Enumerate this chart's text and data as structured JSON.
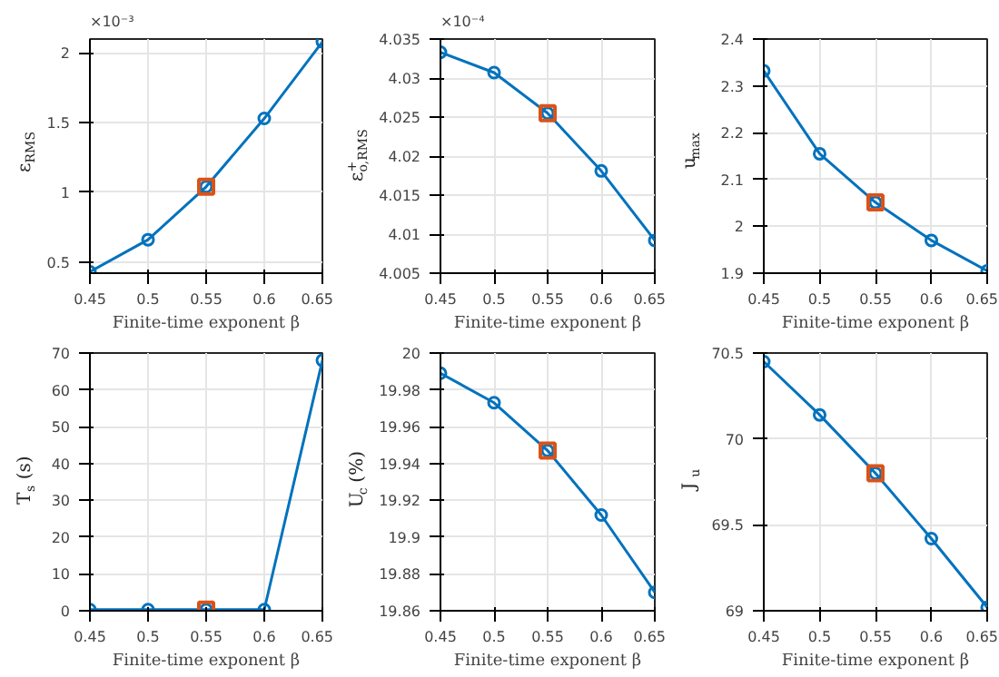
{
  "chart_data": [
    {
      "type": "line",
      "xlabel": "Finite-time exponent β",
      "ylabel": "ε$_{RMS}$",
      "annotations": [
        "×10⁻³"
      ],
      "x": [
        0.45,
        0.5,
        0.55,
        0.6,
        0.65
      ],
      "xlim": [
        0.45,
        0.65
      ],
      "xticks": [
        0.45,
        0.5,
        0.55,
        0.6,
        0.65
      ],
      "ylim": [
        0.42,
        2.1
      ],
      "yticks": [
        0.5,
        1,
        1.5,
        2
      ],
      "grid": true,
      "marker": "circle",
      "series": [
        {
          "color": "#0072bd",
          "values": [
            0.43,
            0.66,
            1.04,
            1.53,
            2.08
          ]
        },
        {
          "type": "scatter",
          "marker": "square",
          "color": "#d95319",
          "values": [
            null,
            null,
            1.04,
            null,
            null
          ]
        }
      ]
    },
    {
      "type": "line",
      "xlabel": "Finite-time exponent β",
      "ylabel": "ε$^{+}$$_{o,RMS}$",
      "annotations": [
        "×10⁻⁴"
      ],
      "x": [
        0.45,
        0.5,
        0.55,
        0.6,
        0.65
      ],
      "xlim": [
        0.45,
        0.65
      ],
      "xticks": [
        0.45,
        0.5,
        0.55,
        0.6,
        0.65
      ],
      "ylim": [
        4.005,
        4.035
      ],
      "yticks": [
        4.005,
        4.01,
        4.015,
        4.02,
        4.025,
        4.03,
        4.035
      ],
      "grid": true,
      "marker": "circle",
      "series": [
        {
          "color": "#0072bd",
          "values": [
            4.0333,
            4.0307,
            4.0255,
            4.0181,
            4.0092
          ]
        },
        {
          "type": "scatter",
          "marker": "square",
          "color": "#d95319",
          "values": [
            null,
            null,
            4.0255,
            null,
            null
          ]
        }
      ]
    },
    {
      "type": "line",
      "xlabel": "Finite-time exponent β",
      "ylabel": "u$_{max}$",
      "x": [
        0.45,
        0.5,
        0.55,
        0.6,
        0.65
      ],
      "xlim": [
        0.45,
        0.65
      ],
      "xticks": [
        0.45,
        0.5,
        0.55,
        0.6,
        0.65
      ],
      "ylim": [
        1.9,
        2.4
      ],
      "yticks": [
        1.9,
        2,
        2.1,
        2.2,
        2.3,
        2.4
      ],
      "grid": true,
      "marker": "circle",
      "series": [
        {
          "color": "#0072bd",
          "values": [
            2.332,
            2.155,
            2.051,
            1.97,
            1.905
          ]
        },
        {
          "type": "scatter",
          "marker": "square",
          "color": "#d95319",
          "values": [
            null,
            null,
            2.051,
            null,
            null
          ]
        }
      ]
    },
    {
      "type": "line",
      "xlabel": "Finite-time exponent β",
      "ylabel": "T$_{s}$ (s)",
      "x": [
        0.45,
        0.5,
        0.55,
        0.6,
        0.65
      ],
      "xlim": [
        0.45,
        0.65
      ],
      "xticks": [
        0.45,
        0.5,
        0.55,
        0.6,
        0.65
      ],
      "ylim": [
        0,
        70
      ],
      "yticks": [
        0,
        10,
        20,
        30,
        40,
        50,
        60,
        70
      ],
      "grid": true,
      "marker": "circle",
      "series": [
        {
          "color": "#0072bd",
          "values": [
            0.3,
            0.3,
            0.3,
            0.3,
            68
          ]
        },
        {
          "type": "scatter",
          "marker": "square",
          "color": "#d95319",
          "values": [
            null,
            null,
            0.3,
            null,
            null
          ]
        }
      ]
    },
    {
      "type": "line",
      "xlabel": "Finite-time exponent β",
      "ylabel": "U$_{c}$ (%)",
      "x": [
        0.45,
        0.5,
        0.55,
        0.6,
        0.65
      ],
      "xlim": [
        0.45,
        0.65
      ],
      "xticks": [
        0.45,
        0.5,
        0.55,
        0.6,
        0.65
      ],
      "ylim": [
        19.86,
        20
      ],
      "yticks": [
        19.86,
        19.88,
        19.9,
        19.92,
        19.94,
        19.96,
        19.98,
        20
      ],
      "grid": true,
      "marker": "circle",
      "series": [
        {
          "color": "#0072bd",
          "values": [
            19.989,
            19.973,
            19.947,
            19.912,
            19.87
          ]
        },
        {
          "type": "scatter",
          "marker": "square",
          "color": "#d95319",
          "values": [
            null,
            null,
            19.947,
            null,
            null
          ]
        }
      ]
    },
    {
      "type": "line",
      "xlabel": "Finite-time exponent β",
      "ylabel": "J$_{u}$",
      "x": [
        0.45,
        0.5,
        0.55,
        0.6,
        0.65
      ],
      "xlim": [
        0.45,
        0.65
      ],
      "xticks": [
        0.45,
        0.5,
        0.55,
        0.6,
        0.65
      ],
      "ylim": [
        69,
        70.5
      ],
      "yticks": [
        69,
        69.5,
        70,
        70.5
      ],
      "grid": true,
      "marker": "circle",
      "series": [
        {
          "color": "#0072bd",
          "values": [
            70.45,
            70.14,
            69.8,
            69.42,
            69.02
          ]
        },
        {
          "type": "scatter",
          "marker": "square",
          "color": "#d95319",
          "values": [
            null,
            null,
            69.8,
            null,
            null
          ]
        }
      ]
    }
  ]
}
